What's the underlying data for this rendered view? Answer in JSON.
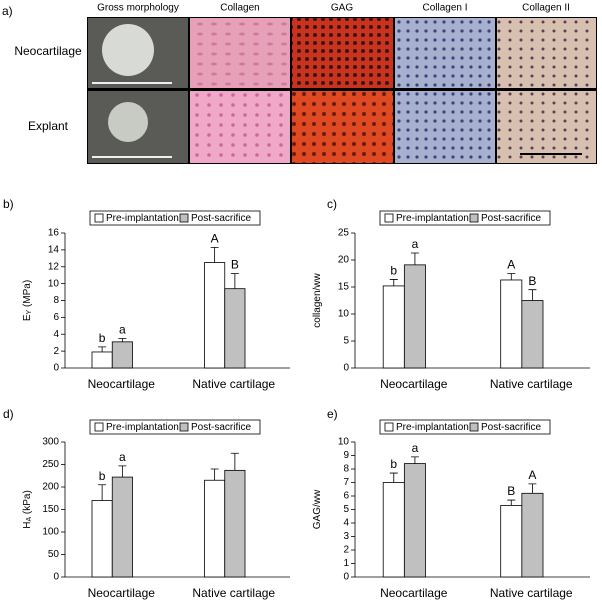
{
  "panel_a": {
    "label": "a)",
    "columns": [
      "Gross morphology",
      "Collagen",
      "GAG",
      "Collagen I",
      "Collagen II"
    ],
    "rows": [
      "Neocartilage",
      "Explant"
    ]
  },
  "chart_data": [
    {
      "panel": "b)",
      "type": "bar",
      "categories": [
        "Neocartilage",
        "Native cartilage"
      ],
      "y_label": {
        "main": "E",
        "sub": "Y",
        "unit": " (MPa)"
      },
      "ylim": [
        0,
        16
      ],
      "yticks": [
        0,
        2,
        4,
        6,
        8,
        10,
        12,
        14,
        16
      ],
      "series": [
        {
          "name": "Pre-implantation",
          "color": "#ffffff",
          "values": [
            1.9,
            12.5
          ],
          "errors": [
            0.6,
            1.8
          ],
          "letters": [
            "b",
            "A"
          ]
        },
        {
          "name": "Post-sacrifice",
          "color": "#c0c0c0",
          "values": [
            3.1,
            9.4
          ],
          "errors": [
            0.4,
            1.8
          ],
          "letters": [
            "a",
            "B"
          ]
        }
      ]
    },
    {
      "panel": "c)",
      "type": "bar",
      "categories": [
        "Neocartilage",
        "Native cartilage"
      ],
      "y_label": {
        "main": "collagen/ww"
      },
      "ylim": [
        0,
        25
      ],
      "yticks": [
        0,
        5,
        10,
        15,
        20,
        25
      ],
      "series": [
        {
          "name": "Pre-implantation",
          "color": "#ffffff",
          "values": [
            15.2,
            16.3
          ],
          "errors": [
            1.2,
            1.2
          ],
          "letters": [
            "b",
            "A"
          ]
        },
        {
          "name": "Post-sacrifice",
          "color": "#c0c0c0",
          "values": [
            19.1,
            12.5
          ],
          "errors": [
            2.2,
            2.0
          ],
          "letters": [
            "a",
            "B"
          ]
        }
      ]
    },
    {
      "panel": "d)",
      "type": "bar",
      "categories": [
        "Neocartilage",
        "Native cartilage"
      ],
      "y_label": {
        "main": "H",
        "sub": "A",
        "unit": " (kPa)"
      },
      "ylim": [
        0,
        300
      ],
      "yticks": [
        0,
        50,
        100,
        150,
        200,
        250,
        300
      ],
      "series": [
        {
          "name": "Pre-implantation",
          "color": "#ffffff",
          "values": [
            170,
            215
          ],
          "errors": [
            35,
            25
          ],
          "letters": [
            "b",
            null
          ]
        },
        {
          "name": "Post-sacrifice",
          "color": "#c0c0c0",
          "values": [
            222,
            237
          ],
          "errors": [
            25,
            38
          ],
          "letters": [
            "a",
            null
          ]
        }
      ]
    },
    {
      "panel": "e)",
      "type": "bar",
      "categories": [
        "Neocartilage",
        "Native cartilage"
      ],
      "y_label": {
        "main": "GAG/ww"
      },
      "ylim": [
        0,
        10
      ],
      "yticks": [
        0,
        1,
        2,
        3,
        4,
        5,
        6,
        7,
        8,
        9,
        10
      ],
      "series": [
        {
          "name": "Pre-implantation",
          "color": "#ffffff",
          "values": [
            7.0,
            5.3
          ],
          "errors": [
            0.7,
            0.4
          ],
          "letters": [
            "b",
            "B"
          ]
        },
        {
          "name": "Post-sacrifice",
          "color": "#c0c0c0",
          "values": [
            8.4,
            6.2
          ],
          "errors": [
            0.5,
            0.7
          ],
          "letters": [
            "a",
            "A"
          ]
        }
      ]
    }
  ]
}
